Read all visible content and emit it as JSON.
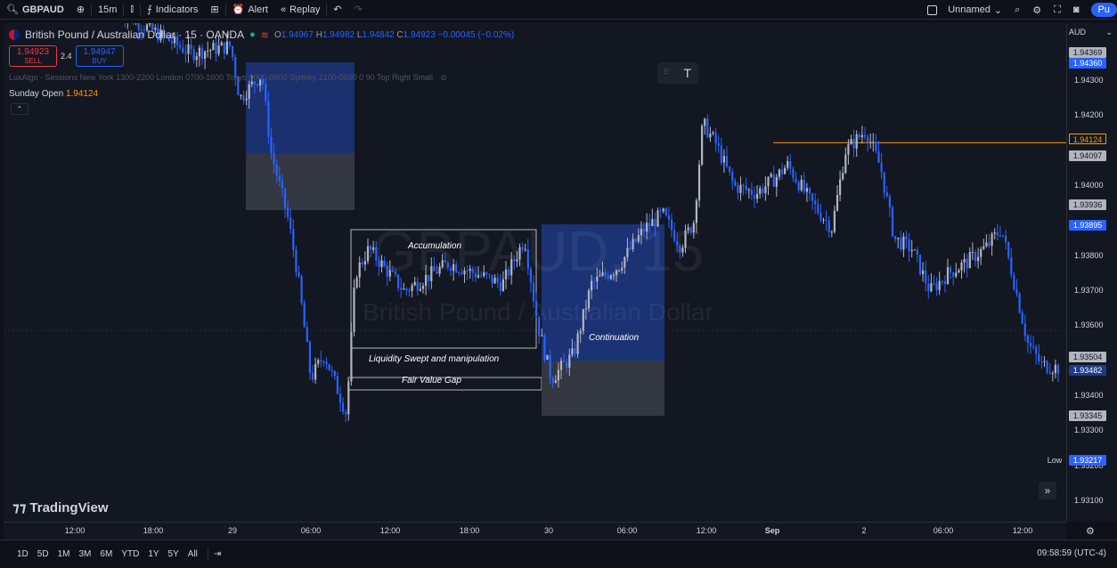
{
  "toolbar": {
    "symbol": "GBPAUD",
    "interval": "15m",
    "indicators_label": "Indicators",
    "alert_label": "Alert",
    "replay_label": "Replay",
    "layout_name": "Unnamed",
    "publish_label": "Pu"
  },
  "legend": {
    "title": "British Pound / Australian Dollar · 15 · OANDA",
    "ohlc": [
      {
        "k": "O",
        "v": "1.94967"
      },
      {
        "k": "H",
        "v": "1.94982"
      },
      {
        "k": "L",
        "v": "1.94842"
      },
      {
        "k": "C",
        "v": "1.94923"
      }
    ],
    "change": "−0.00045 (−0.02%)"
  },
  "trade": {
    "sell_price": "1.94923",
    "sell_label": "SELL",
    "spread": "2.4",
    "buy_price": "1.94947",
    "buy_label": "BUY"
  },
  "indicator_text": "LuxAlgo - Sessions New York 1300-2200 London 0700-1600 Tokyo 0000-0900 Sydney 2100-0600 0 90 Top Right Small",
  "sunday_open": {
    "label": "Sunday Open",
    "value": "1.94124"
  },
  "watermark": {
    "symbol": "GBPAUD, 15",
    "name": "British Pound / Australian Dollar"
  },
  "logo": "TradingView",
  "annotations": {
    "accumulation": "Accumulation",
    "liquidity": "Liquidity Swept and manipulation",
    "fvg": "Fair Value Gap",
    "continuation": "Continuation"
  },
  "price_axis": {
    "currency": "AUD",
    "ticks": [
      "1.94300",
      "1.94200",
      "1.94000",
      "1.93800",
      "1.93700",
      "1.93600",
      "1.93400",
      "1.93300",
      "1.93200",
      "1.93100"
    ],
    "tags": [
      {
        "value": "1.94369",
        "bg": "#b2b5be",
        "fg": "#131722"
      },
      {
        "value": "1.94360",
        "bg": "#2962ff",
        "fg": "#ffffff"
      },
      {
        "value": "1.94124",
        "bg": "#131722",
        "fg": "#ff9800"
      },
      {
        "value": "1.94097",
        "bg": "#b2b5be",
        "fg": "#131722"
      },
      {
        "value": "1.93936",
        "bg": "#b2b5be",
        "fg": "#131722"
      },
      {
        "value": "1.93895",
        "bg": "#2962ff",
        "fg": "#ffffff"
      },
      {
        "value": "1.93504",
        "bg": "#b2b5be",
        "fg": "#131722"
      },
      {
        "value": "1.93482",
        "bg": "#1e3a8a",
        "fg": "#ffffff"
      },
      {
        "value": "1.93345",
        "bg": "#b2b5be",
        "fg": "#131722"
      },
      {
        "value": "1.93217",
        "bg": "#2962ff",
        "fg": "#ffffff"
      }
    ],
    "low_label": "Low"
  },
  "time_axis": [
    "12:00",
    "18:00",
    "29",
    "06:00",
    "12:00",
    "18:00",
    "30",
    "06:00",
    "12:00",
    "Sep",
    "2",
    "06:00",
    "12:00"
  ],
  "ranges": [
    "1D",
    "5D",
    "1M",
    "3M",
    "6M",
    "YTD",
    "1Y",
    "5Y",
    "All"
  ],
  "clock": "09:58:59 (UTC-4)",
  "colors": {
    "up": "#b2b5be",
    "down": "#2962ff",
    "sunday_open": "#ff9800",
    "zone_blue": "#1e3a8a",
    "zone_gray": "#3a3d48"
  }
}
